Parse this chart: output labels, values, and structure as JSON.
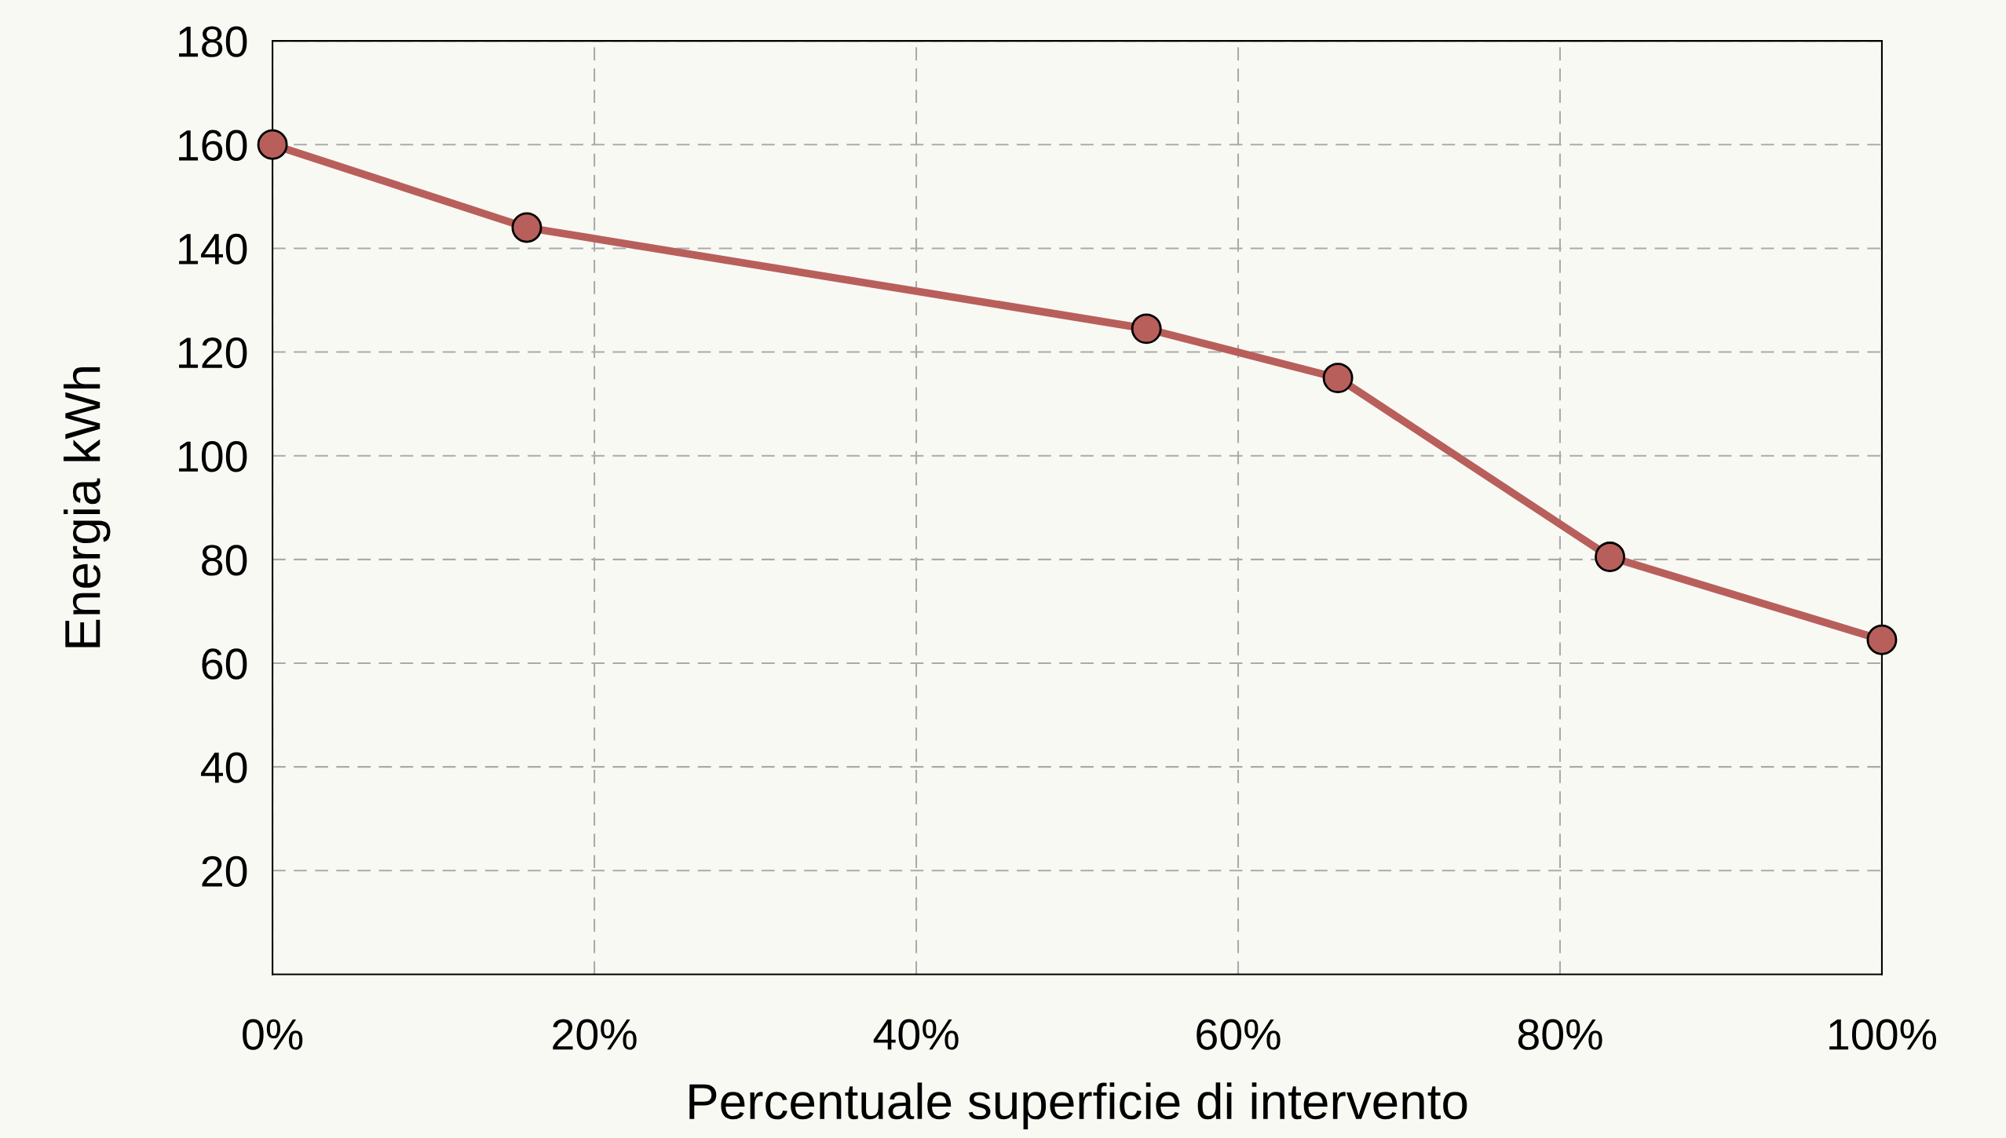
{
  "chart_data": {
    "type": "line",
    "xlabel": "Percentuale superficie di intervento",
    "ylabel": "Energia kWh",
    "x": [
      0,
      15.8,
      54.3,
      66.2,
      83.1,
      100
    ],
    "series": [
      {
        "color": "#b85f5c",
        "values": [
          160,
          144,
          124.5,
          115,
          80.5,
          64.5
        ]
      }
    ],
    "xlim": [
      0,
      100
    ],
    "xticks": [
      {
        "value": 0,
        "label": "0%"
      },
      {
        "value": 20,
        "label": "20%"
      },
      {
        "value": 40,
        "label": "40%"
      },
      {
        "value": 60,
        "label": "60%"
      },
      {
        "value": 80,
        "label": "80%"
      },
      {
        "value": 100,
        "label": "100%"
      }
    ],
    "ylim": [
      0,
      180
    ],
    "yticks": [
      20,
      40,
      60,
      80,
      100,
      120,
      140,
      160,
      180
    ],
    "grid": true,
    "marker": "circle",
    "line_style": "solid",
    "legend": false
  }
}
